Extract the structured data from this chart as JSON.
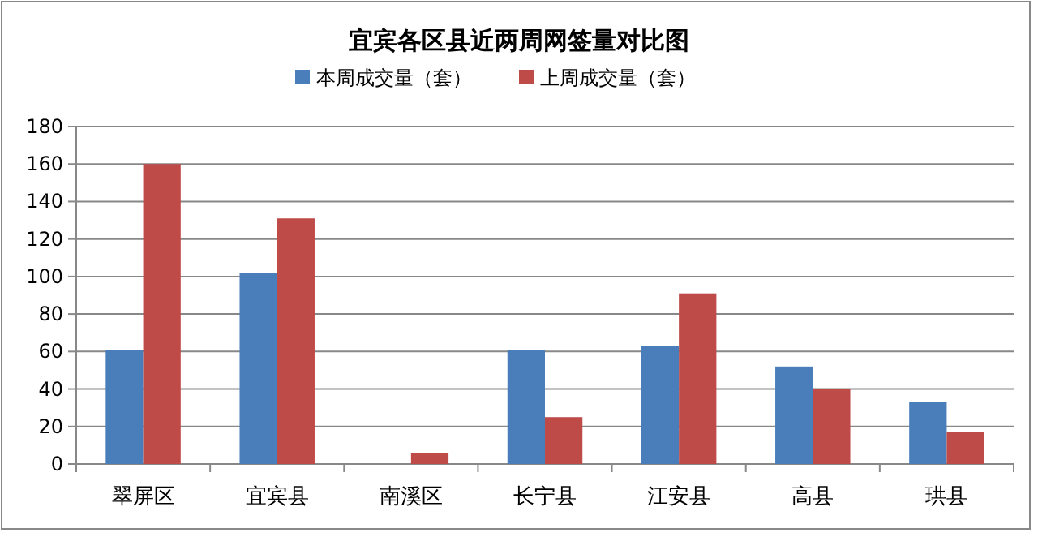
{
  "chart_data": {
    "type": "bar",
    "title": "宜宾各区县近两周网签量对比图",
    "categories": [
      "翠屏区",
      "宜宾县",
      "南溪区",
      "长宁县",
      "江安县",
      "高县",
      "珙县"
    ],
    "series": [
      {
        "name": "本周成交量（套）",
        "color": "#4a7ebb",
        "values": [
          61,
          102,
          0,
          61,
          63,
          52,
          33
        ]
      },
      {
        "name": "上周成交量（套）",
        "color": "#be4b48",
        "values": [
          160,
          131,
          6,
          25,
          91,
          40,
          17
        ]
      }
    ],
    "ylim": [
      0,
      180
    ],
    "yticks": [
      0,
      20,
      40,
      60,
      80,
      100,
      120,
      140,
      160,
      180
    ],
    "grid": "y",
    "legend": "top"
  }
}
